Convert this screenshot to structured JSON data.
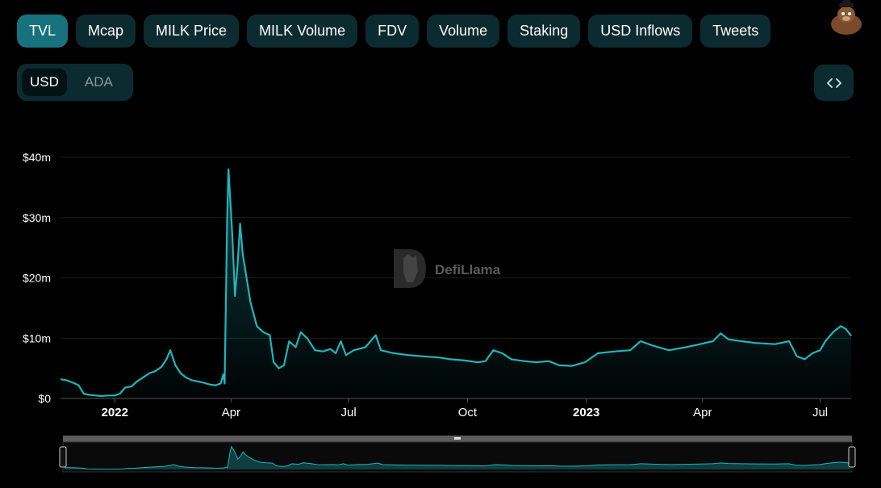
{
  "tabs": [
    {
      "label": "TVL",
      "active": true
    },
    {
      "label": "Mcap",
      "active": false
    },
    {
      "label": "MILK Price",
      "active": false
    },
    {
      "label": "MILK Volume",
      "active": false
    },
    {
      "label": "FDV",
      "active": false
    },
    {
      "label": "Volume",
      "active": false
    },
    {
      "label": "Staking",
      "active": false
    },
    {
      "label": "USD Inflows",
      "active": false
    },
    {
      "label": "Tweets",
      "active": false
    }
  ],
  "currency_toggle": {
    "options": [
      "USD",
      "ADA"
    ],
    "selected": "USD"
  },
  "watermark": "DefiLlama",
  "colors": {
    "line": "#1fb5bd",
    "tab_active": "#17727d",
    "tab_bg": "#0c2b30",
    "background": "#000000"
  },
  "icons": {
    "embed": "code-brackets-icon",
    "avatar": "llama-avatar-icon"
  },
  "chart_data": {
    "type": "area",
    "y_ticks": [
      "$0",
      "$10m",
      "$20m",
      "$30m",
      "$40m"
    ],
    "y_tick_values": [
      0,
      10,
      20,
      30,
      40
    ],
    "ylim": [
      0,
      40
    ],
    "x_tick_labels": [
      {
        "label": "2022",
        "date": "2022-01-01",
        "bold": true
      },
      {
        "label": "Apr",
        "date": "2022-04-01",
        "bold": false
      },
      {
        "label": "Jul",
        "date": "2022-07-01",
        "bold": false
      },
      {
        "label": "Oct",
        "date": "2022-10-01",
        "bold": false
      },
      {
        "label": "2023",
        "date": "2023-01-01",
        "bold": true
      },
      {
        "label": "Apr",
        "date": "2023-04-01",
        "bold": false
      },
      {
        "label": "Jul",
        "date": "2023-07-01",
        "bold": false
      }
    ],
    "xlim": [
      "2021-11-20",
      "2023-07-25"
    ],
    "grid": true,
    "series": [
      {
        "values_unit": "USD millions",
        "points": [
          [
            "2021-11-20",
            3.2
          ],
          [
            "2021-11-25",
            3.0
          ],
          [
            "2021-11-30",
            2.6
          ],
          [
            "2021-12-04",
            2.2
          ],
          [
            "2021-12-08",
            0.8
          ],
          [
            "2021-12-12",
            0.6
          ],
          [
            "2021-12-17",
            0.5
          ],
          [
            "2021-12-22",
            0.4
          ],
          [
            "2021-12-27",
            0.5
          ],
          [
            "2022-01-01",
            0.5
          ],
          [
            "2022-01-05",
            0.8
          ],
          [
            "2022-01-09",
            1.8
          ],
          [
            "2022-01-14",
            2.0
          ],
          [
            "2022-01-18",
            2.8
          ],
          [
            "2022-01-23",
            3.5
          ],
          [
            "2022-01-28",
            4.2
          ],
          [
            "2022-02-01",
            4.5
          ],
          [
            "2022-02-06",
            5.2
          ],
          [
            "2022-02-10",
            6.5
          ],
          [
            "2022-02-13",
            8.0
          ],
          [
            "2022-02-17",
            5.5
          ],
          [
            "2022-02-21",
            4.2
          ],
          [
            "2022-02-25",
            3.5
          ],
          [
            "2022-03-02",
            3.0
          ],
          [
            "2022-03-07",
            2.8
          ],
          [
            "2022-03-11",
            2.6
          ],
          [
            "2022-03-16",
            2.3
          ],
          [
            "2022-03-20",
            2.2
          ],
          [
            "2022-03-24",
            2.5
          ],
          [
            "2022-03-26",
            4.0
          ],
          [
            "2022-03-27",
            2.5
          ],
          [
            "2022-03-29",
            30.0
          ],
          [
            "2022-03-30",
            38.0
          ],
          [
            "2022-04-02",
            27.0
          ],
          [
            "2022-04-04",
            17.0
          ],
          [
            "2022-04-06",
            22.0
          ],
          [
            "2022-04-08",
            29.0
          ],
          [
            "2022-04-10",
            24.0
          ],
          [
            "2022-04-13",
            20.0
          ],
          [
            "2022-04-16",
            16.0
          ],
          [
            "2022-04-21",
            12.0
          ],
          [
            "2022-04-26",
            11.0
          ],
          [
            "2022-05-01",
            10.5
          ],
          [
            "2022-05-04",
            6.0
          ],
          [
            "2022-05-08",
            5.0
          ],
          [
            "2022-05-12",
            5.5
          ],
          [
            "2022-05-16",
            9.5
          ],
          [
            "2022-05-21",
            8.5
          ],
          [
            "2022-05-25",
            11.0
          ],
          [
            "2022-05-30",
            10.0
          ],
          [
            "2022-06-05",
            8.0
          ],
          [
            "2022-06-11",
            7.8
          ],
          [
            "2022-06-17",
            8.2
          ],
          [
            "2022-06-21",
            7.5
          ],
          [
            "2022-06-25",
            9.5
          ],
          [
            "2022-06-29",
            7.2
          ],
          [
            "2022-07-05",
            8.0
          ],
          [
            "2022-07-14",
            8.5
          ],
          [
            "2022-07-22",
            10.5
          ],
          [
            "2022-07-26",
            8.0
          ],
          [
            "2022-08-05",
            7.5
          ],
          [
            "2022-08-16",
            7.2
          ],
          [
            "2022-08-27",
            7.0
          ],
          [
            "2022-09-09",
            6.8
          ],
          [
            "2022-09-18",
            6.5
          ],
          [
            "2022-09-29",
            6.3
          ],
          [
            "2022-10-09",
            6.0
          ],
          [
            "2022-10-15",
            6.2
          ],
          [
            "2022-10-21",
            8.0
          ],
          [
            "2022-10-28",
            7.5
          ],
          [
            "2022-11-04",
            6.5
          ],
          [
            "2022-11-14",
            6.2
          ],
          [
            "2022-11-23",
            6.0
          ],
          [
            "2022-12-03",
            6.2
          ],
          [
            "2022-12-11",
            5.5
          ],
          [
            "2022-12-21",
            5.4
          ],
          [
            "2022-12-31",
            6.0
          ],
          [
            "2023-01-10",
            7.5
          ],
          [
            "2023-01-23",
            7.8
          ],
          [
            "2023-02-04",
            8.0
          ],
          [
            "2023-02-12",
            9.5
          ],
          [
            "2023-02-21",
            8.8
          ],
          [
            "2023-03-06",
            8.0
          ],
          [
            "2023-03-19",
            8.5
          ],
          [
            "2023-03-30",
            9.0
          ],
          [
            "2023-04-09",
            9.5
          ],
          [
            "2023-04-15",
            10.8
          ],
          [
            "2023-04-21",
            9.8
          ],
          [
            "2023-05-01",
            9.5
          ],
          [
            "2023-05-12",
            9.2
          ],
          [
            "2023-05-27",
            9.0
          ],
          [
            "2023-06-07",
            9.5
          ],
          [
            "2023-06-13",
            7.0
          ],
          [
            "2023-06-19",
            6.5
          ],
          [
            "2023-06-25",
            7.5
          ],
          [
            "2023-07-01",
            8.0
          ],
          [
            "2023-07-05",
            9.5
          ],
          [
            "2023-07-11",
            11.0
          ],
          [
            "2023-07-17",
            12.0
          ],
          [
            "2023-07-21",
            11.5
          ],
          [
            "2023-07-25",
            10.4
          ]
        ]
      }
    ]
  }
}
